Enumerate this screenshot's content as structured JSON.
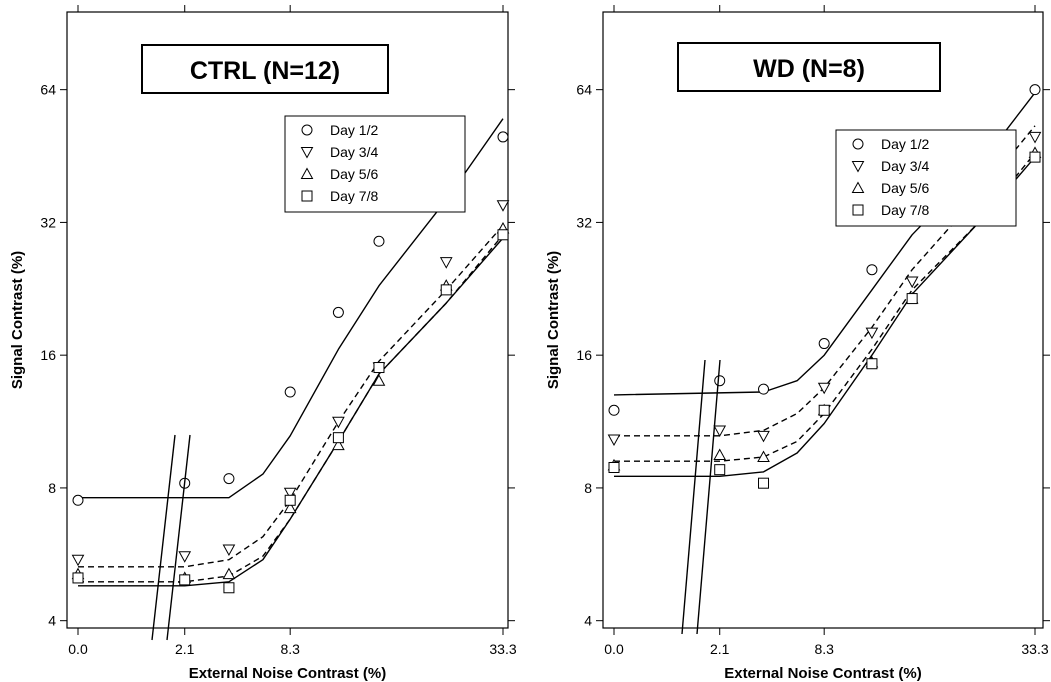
{
  "chart_data": [
    {
      "type": "line",
      "title": "CTRL (N=12)",
      "xlabel": "External Noise Contrast (%)",
      "ylabel": "Signal Contrast (%)",
      "x_ticks": [
        "0.0",
        "2.1",
        "8.3",
        "33.3"
      ],
      "y_ticks": [
        "4",
        "8",
        "16",
        "32",
        "64"
      ],
      "yscale": "log2",
      "ylim": [
        3.85,
        96
      ],
      "axis_break": true,
      "legend_position": "top-right",
      "series": [
        {
          "name": "Day 1/2",
          "marker": "circle",
          "points": [
            [
              0.0,
              7.5
            ],
            [
              2.1,
              8.2
            ],
            [
              4.2,
              8.4
            ],
            [
              8.3,
              13.2
            ],
            [
              12.5,
              20.0
            ],
            [
              16.7,
              29.0
            ],
            [
              25.0,
              42.0
            ],
            [
              33.3,
              50.0
            ]
          ],
          "fit": [
            [
              0.0,
              7.6
            ],
            [
              4.2,
              7.6
            ],
            [
              6.3,
              8.6
            ],
            [
              8.3,
              10.5
            ],
            [
              12.5,
              16.5
            ],
            [
              16.7,
              23.0
            ],
            [
              25.0,
              36.0
            ],
            [
              33.3,
              55.0
            ]
          ],
          "line_style": "solid"
        },
        {
          "name": "Day 3/4",
          "marker": "triangle-down",
          "points": [
            [
              0.0,
              5.5
            ],
            [
              2.1,
              5.6
            ],
            [
              4.2,
              5.8
            ],
            [
              8.3,
              7.8
            ],
            [
              12.5,
              11.3
            ],
            [
              16.7,
              15.0
            ],
            [
              25.0,
              26.0
            ],
            [
              33.3,
              35.0
            ]
          ],
          "fit": [
            [
              0.0,
              5.3
            ],
            [
              2.1,
              5.3
            ],
            [
              4.2,
              5.5
            ],
            [
              6.3,
              6.2
            ],
            [
              8.3,
              7.5
            ],
            [
              12.5,
              11.3
            ],
            [
              16.7,
              15.5
            ],
            [
              25.0,
              22.5
            ],
            [
              33.3,
              31.5
            ]
          ],
          "line_style": "dashed"
        },
        {
          "name": "Day 5/6",
          "marker": "triangle-up",
          "points": [
            [
              0.0,
              5.1
            ],
            [
              2.1,
              5.0
            ],
            [
              4.2,
              5.1
            ],
            [
              8.3,
              7.2
            ],
            [
              12.5,
              10.0
            ],
            [
              16.7,
              14.0
            ],
            [
              25.0,
              23.0
            ],
            [
              33.3,
              31.0
            ]
          ],
          "fit": [
            [
              0.0,
              4.9
            ],
            [
              2.1,
              4.9
            ],
            [
              4.2,
              5.05
            ],
            [
              6.3,
              5.6
            ],
            [
              8.3,
              6.8
            ],
            [
              12.5,
              10.2
            ],
            [
              16.7,
              14.5
            ],
            [
              25.0,
              21.0
            ],
            [
              33.3,
              30.0
            ]
          ],
          "line_style": "dashed"
        },
        {
          "name": "Day 7/8",
          "marker": "square",
          "points": [
            [
              0.0,
              5.0
            ],
            [
              2.1,
              4.95
            ],
            [
              4.2,
              4.75
            ],
            [
              8.3,
              7.5
            ],
            [
              12.5,
              10.4
            ],
            [
              16.7,
              15.0
            ],
            [
              25.0,
              22.5
            ],
            [
              33.3,
              30.0
            ]
          ],
          "fit": [
            [
              0.0,
              4.8
            ],
            [
              2.1,
              4.8
            ],
            [
              4.2,
              4.9
            ],
            [
              6.3,
              5.5
            ],
            [
              8.3,
              6.8
            ],
            [
              12.5,
              10.2
            ],
            [
              16.7,
              14.5
            ],
            [
              25.0,
              21.0
            ],
            [
              33.3,
              29.5
            ]
          ],
          "line_style": "solid"
        }
      ]
    },
    {
      "type": "line",
      "title": "WD  (N=8)",
      "xlabel": "External Noise Contrast (%)",
      "ylabel": "Signal Contrast (%)",
      "x_ticks": [
        "0.0",
        "2.1",
        "8.3",
        "33.3"
      ],
      "y_ticks": [
        "4",
        "8",
        "16",
        "32",
        "64"
      ],
      "yscale": "log2",
      "ylim": [
        3.85,
        96
      ],
      "axis_break": true,
      "legend_position": "top-right",
      "series": [
        {
          "name": "Day 1/2",
          "marker": "circle",
          "points": [
            [
              0.0,
              12.0
            ],
            [
              2.1,
              14.0
            ],
            [
              4.2,
              13.4
            ],
            [
              8.3,
              17.0
            ],
            [
              12.5,
              25.0
            ],
            [
              16.7,
              33.0
            ],
            [
              25.0,
              45.0
            ],
            [
              33.3,
              64.0
            ]
          ],
          "fit": [
            [
              0.0,
              13.0
            ],
            [
              4.2,
              13.2
            ],
            [
              6.3,
              14.0
            ],
            [
              8.3,
              16.0
            ],
            [
              12.5,
              22.5
            ],
            [
              16.7,
              30.0
            ],
            [
              25.0,
              43.0
            ],
            [
              33.3,
              63.0
            ]
          ],
          "line_style": "solid"
        },
        {
          "name": "Day 3/4",
          "marker": "triangle-down",
          "points": [
            [
              0.0,
              10.3
            ],
            [
              2.1,
              10.8
            ],
            [
              4.2,
              10.5
            ],
            [
              8.3,
              13.5
            ],
            [
              12.5,
              18.0
            ],
            [
              16.7,
              23.5
            ],
            [
              25.0,
              35.0
            ],
            [
              33.3,
              50.0
            ]
          ],
          "fit": [
            [
              0.0,
              10.5
            ],
            [
              2.1,
              10.5
            ],
            [
              4.2,
              10.8
            ],
            [
              6.3,
              11.8
            ],
            [
              8.3,
              13.5
            ],
            [
              12.5,
              18.5
            ],
            [
              16.7,
              25.0
            ],
            [
              25.0,
              37.0
            ],
            [
              33.3,
              53.0
            ]
          ],
          "line_style": "dashed"
        },
        {
          "name": "Day 5/6",
          "marker": "triangle-up",
          "points": [
            [
              0.0,
              9.0
            ],
            [
              2.1,
              9.5
            ],
            [
              4.2,
              9.4
            ],
            [
              8.3,
              12.0
            ],
            [
              12.5,
              15.4
            ],
            [
              16.7,
              21.5
            ],
            [
              25.0,
              33.0
            ],
            [
              33.3,
              46.0
            ]
          ],
          "fit": [
            [
              0.0,
              9.2
            ],
            [
              2.1,
              9.2
            ],
            [
              4.2,
              9.4
            ],
            [
              6.3,
              10.2
            ],
            [
              8.3,
              11.8
            ],
            [
              12.5,
              16.5
            ],
            [
              16.7,
              22.5
            ],
            [
              25.0,
              32.0
            ],
            [
              33.3,
              46.0
            ]
          ],
          "line_style": "dashed"
        },
        {
          "name": "Day 7/8",
          "marker": "square",
          "points": [
            [
              0.0,
              8.9
            ],
            [
              2.1,
              8.8
            ],
            [
              4.2,
              8.2
            ],
            [
              8.3,
              12.0
            ],
            [
              12.5,
              15.3
            ],
            [
              16.7,
              21.5
            ],
            [
              25.0,
              33.5
            ],
            [
              33.3,
              45.0
            ]
          ],
          "fit": [
            [
              0.0,
              8.5
            ],
            [
              2.1,
              8.5
            ],
            [
              4.2,
              8.7
            ],
            [
              6.3,
              9.6
            ],
            [
              8.3,
              11.2
            ],
            [
              12.5,
              16.0
            ],
            [
              16.7,
              22.0
            ],
            [
              25.0,
              32.0
            ],
            [
              33.3,
              45.0
            ]
          ],
          "line_style": "solid"
        }
      ]
    }
  ]
}
